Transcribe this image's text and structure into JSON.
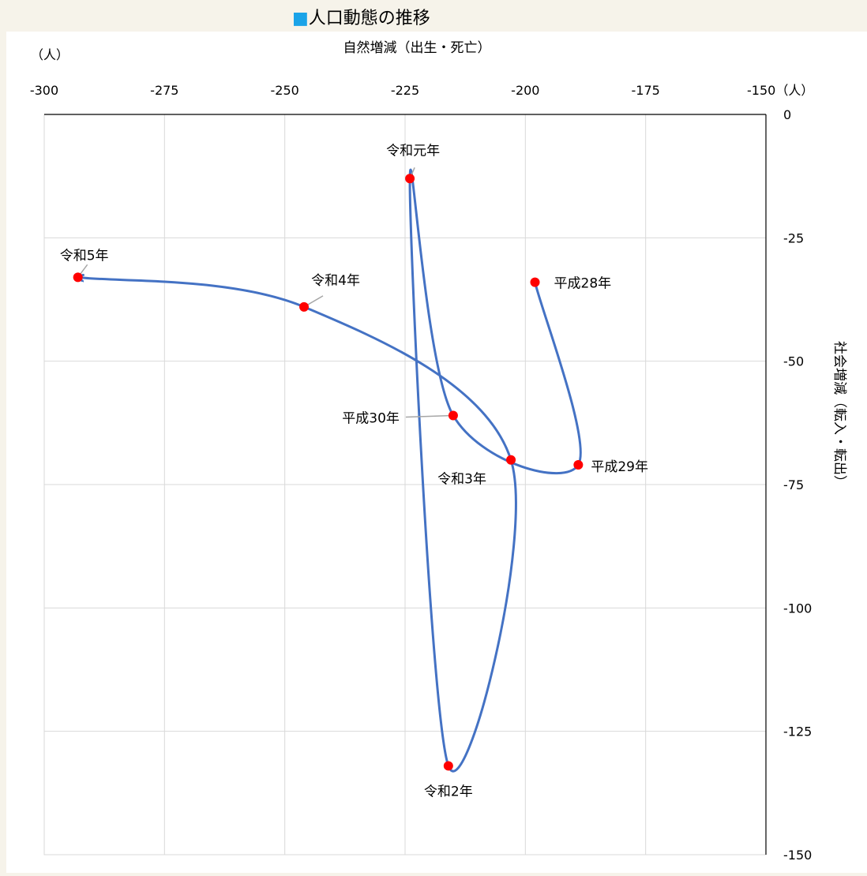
{
  "chart_data": {
    "type": "scatter",
    "title": "人口動態の推移",
    "title_marker": "■",
    "title_marker_color": "#1aa3e8",
    "unit_label": "（人）",
    "x_unit_suffix": "（人）",
    "xlabel": "自然増減（出生・死亡）",
    "ylabel": "社会増減（転入・転出）",
    "xlim": [
      -300,
      -150
    ],
    "ylim": [
      -150,
      0
    ],
    "x_axis_position": "top",
    "y_axis_position": "right",
    "x_ticks": [
      -300,
      -275,
      -250,
      -225,
      -200,
      -175,
      -150
    ],
    "y_ticks": [
      0,
      -25,
      -50,
      -75,
      -100,
      -125,
      -150
    ],
    "grid": true,
    "legend": "none",
    "line_color": "#4472c4",
    "marker_color": "#ff0000",
    "series": [
      {
        "points": [
          {
            "label": "平成28年",
            "x": -198,
            "y": -34
          },
          {
            "label": "平成29年",
            "x": -189,
            "y": -71
          },
          {
            "label": "平成30年",
            "x": -215,
            "y": -61
          },
          {
            "label": "令和元年",
            "x": -224,
            "y": -13
          },
          {
            "label": "令和2年",
            "x": -216,
            "y": -132
          },
          {
            "label": "令和3年",
            "x": -203,
            "y": -70
          },
          {
            "label": "令和4年",
            "x": -246,
            "y": -39
          },
          {
            "label": "令和5年",
            "x": -293,
            "y": -33
          }
        ]
      }
    ]
  }
}
